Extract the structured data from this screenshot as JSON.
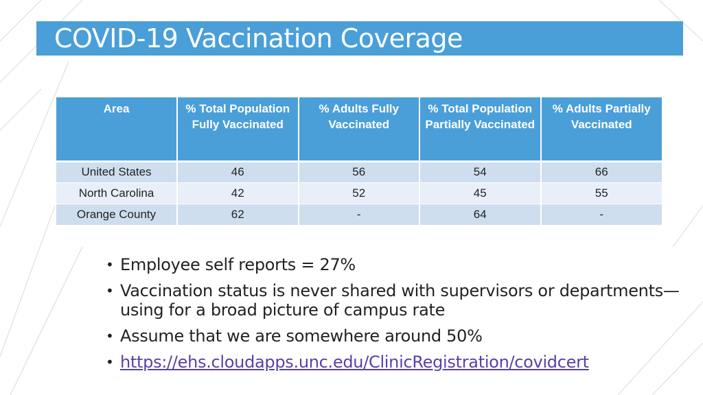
{
  "title": "COVID-19 Vaccination Coverage",
  "table": {
    "headers": [
      "Area",
      "% Total Population Fully Vaccinated",
      "% Adults Fully Vaccinated",
      "% Total Population Partially Vaccinated",
      "% Adults Partially Vaccinated"
    ],
    "rows": [
      [
        "United States",
        "46",
        "56",
        "54",
        "66"
      ],
      [
        "North Carolina",
        "42",
        "52",
        "45",
        "55"
      ],
      [
        "Orange County",
        "62",
        "-",
        "64",
        "-"
      ]
    ]
  },
  "bullets": [
    "Employee self reports = 27%",
    "Vaccination status is never shared with supervisors or departments—using for a broad picture of campus rate",
    "Assume that we are somewhere around 50%",
    "https://ehs.cloudapps.unc.edu/ClinicRegistration/covidcert"
  ],
  "bullet_glyph": "•",
  "colors": {
    "accent": "#4a9fd8",
    "row_odd": "#cfdeee",
    "row_even": "#e8eff8",
    "link": "#5b3fa6"
  }
}
